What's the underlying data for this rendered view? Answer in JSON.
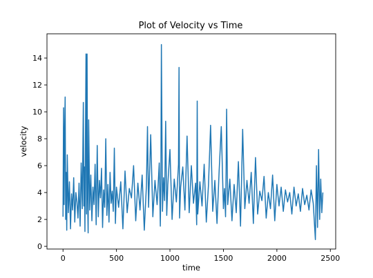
{
  "chart_data": {
    "type": "line",
    "title": "Plot of Velocity vs Time",
    "xlabel": "time",
    "ylabel": "velocity",
    "xlim": [
      -150,
      2550
    ],
    "ylim": [
      -0.2,
      15.8
    ],
    "x_ticks": [
      0,
      500,
      1000,
      1500,
      2000,
      2500
    ],
    "y_ticks": [
      0,
      2,
      4,
      6,
      8,
      10,
      12,
      14
    ],
    "x_tick_labels": [
      "0",
      "500",
      "1000",
      "1500",
      "2000",
      "2500"
    ],
    "y_tick_labels": [
      "0",
      "2",
      "4",
      "6",
      "8",
      "10",
      "12",
      "14"
    ],
    "grid": false,
    "legend": "none",
    "series_color": "#1f77b4",
    "series": [
      {
        "x": [
          0,
          5,
          10,
          15,
          20,
          25,
          30,
          35,
          40,
          50,
          60,
          70,
          80,
          90,
          100,
          110,
          120,
          130,
          140,
          150,
          160,
          170,
          180,
          190,
          195,
          200,
          205,
          210,
          215,
          220,
          225,
          230,
          235,
          240,
          250,
          260,
          270,
          280,
          290,
          300,
          310,
          320,
          330,
          340,
          350,
          360,
          370,
          380,
          390,
          400,
          410,
          420,
          430,
          440,
          450,
          460,
          470,
          480,
          490,
          500,
          520,
          540,
          560,
          580,
          600,
          620,
          640,
          660,
          680,
          700,
          720,
          740,
          760,
          780,
          790,
          800,
          810,
          820,
          840,
          860,
          880,
          900,
          910,
          915,
          920,
          930,
          940,
          950,
          960,
          970,
          980,
          1000,
          1020,
          1040,
          1060,
          1080,
          1085,
          1090,
          1100,
          1120,
          1140,
          1160,
          1180,
          1200,
          1220,
          1240,
          1250,
          1255,
          1260,
          1280,
          1300,
          1320,
          1340,
          1360,
          1380,
          1400,
          1420,
          1440,
          1460,
          1480,
          1500,
          1510,
          1520,
          1525,
          1530,
          1540,
          1560,
          1580,
          1600,
          1620,
          1640,
          1660,
          1680,
          1700,
          1720,
          1740,
          1760,
          1780,
          1800,
          1820,
          1840,
          1860,
          1880,
          1900,
          1920,
          1940,
          1960,
          1980,
          2000,
          2020,
          2040,
          2060,
          2080,
          2100,
          2120,
          2140,
          2160,
          2180,
          2200,
          2220,
          2240,
          2260,
          2280,
          2300,
          2320,
          2340,
          2360,
          2370,
          2380,
          2390,
          2400,
          2410,
          2420,
          2430
        ],
        "y": [
          2.2,
          10.3,
          3.1,
          8.5,
          11.1,
          2.0,
          5.5,
          1.2,
          6.8,
          2.5,
          4.8,
          1.3,
          3.9,
          2.7,
          5.1,
          1.8,
          4.0,
          3.3,
          2.1,
          4.7,
          1.5,
          6.2,
          2.8,
          10.7,
          3.0,
          5.9,
          1.1,
          8.2,
          14.3,
          2.4,
          14.3,
          3.6,
          1.0,
          9.4,
          2.7,
          5.3,
          1.9,
          4.4,
          3.1,
          6.1,
          1.6,
          7.5,
          2.2,
          4.9,
          3.6,
          5.8,
          1.4,
          4.2,
          2.9,
          8.0,
          2.3,
          4.6,
          1.8,
          5.5,
          3.2,
          4.1,
          2.6,
          7.3,
          1.7,
          4.4,
          2.9,
          4.8,
          1.3,
          5.6,
          2.5,
          4.3,
          3.6,
          6.0,
          1.9,
          4.7,
          2.7,
          5.3,
          1.2,
          4.5,
          8.9,
          2.9,
          5.6,
          8.3,
          2.2,
          4.9,
          3.1,
          6.2,
          1.5,
          4.8,
          15.0,
          2.6,
          5.1,
          3.4,
          9.3,
          2.3,
          4.6,
          7.2,
          2.0,
          5.0,
          3.3,
          6.1,
          13.3,
          2.1,
          4.4,
          5.9,
          2.7,
          8.2,
          2.5,
          6.0,
          3.2,
          4.7,
          1.6,
          10.8,
          2.4,
          4.8,
          3.0,
          6.1,
          1.8,
          4.5,
          9.0,
          2.6,
          4.9,
          1.7,
          5.6,
          8.9,
          2.8,
          4.3,
          2.2,
          5.4,
          10.2,
          3.1,
          5.0,
          1.9,
          4.6,
          2.5,
          6.3,
          1.5,
          8.7,
          2.8,
          4.9,
          3.2,
          5.5,
          1.7,
          6.6,
          2.4,
          4.1,
          3.4,
          5.2,
          2.1,
          4.0,
          2.8,
          5.3,
          1.9,
          4.6,
          3.0,
          4.4,
          2.6,
          4.2,
          3.3,
          4.0,
          2.4,
          4.4,
          3.0,
          3.9,
          2.6,
          4.3,
          3.1,
          3.8,
          2.7,
          4.2,
          3.2,
          0.5,
          6.0,
          1.4,
          7.2,
          2.0,
          5.0,
          2.5,
          4.0
        ]
      }
    ]
  }
}
